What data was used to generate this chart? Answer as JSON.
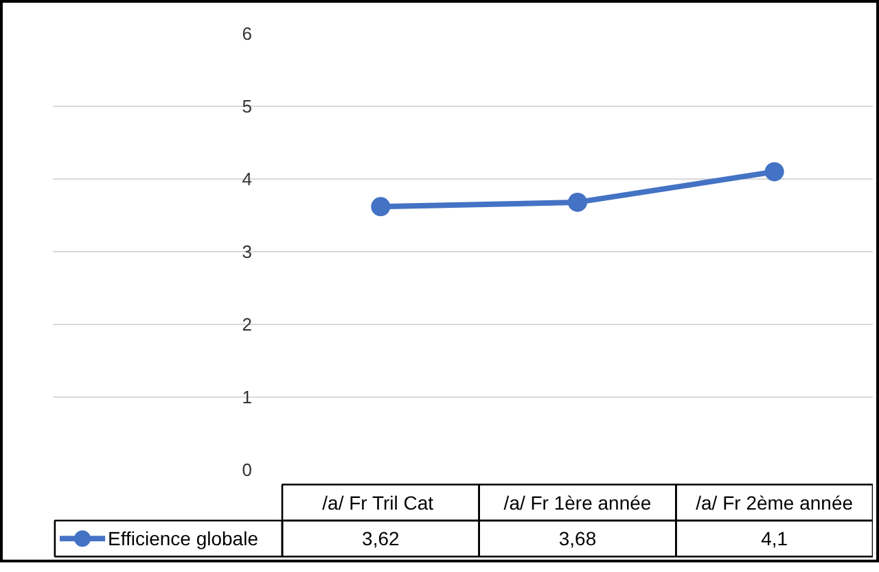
{
  "chart_data": {
    "type": "line",
    "categories": [
      "/a/ Fr Tril  Cat",
      "/a/ Fr 1ère année",
      "/a/ Fr 2ème année"
    ],
    "series": [
      {
        "name": "Efficience globale",
        "color": "#4472c4",
        "values": [
          3.62,
          3.68,
          4.1
        ],
        "value_labels": [
          "3,62",
          "3,68",
          "4,1"
        ]
      }
    ],
    "ylim": [
      0,
      6
    ],
    "yticks": [
      0,
      1,
      2,
      3,
      4,
      5,
      6
    ],
    "grid": "y",
    "legend": "bottom",
    "marker": "circle",
    "line_style": "solid",
    "data_labels": true
  }
}
